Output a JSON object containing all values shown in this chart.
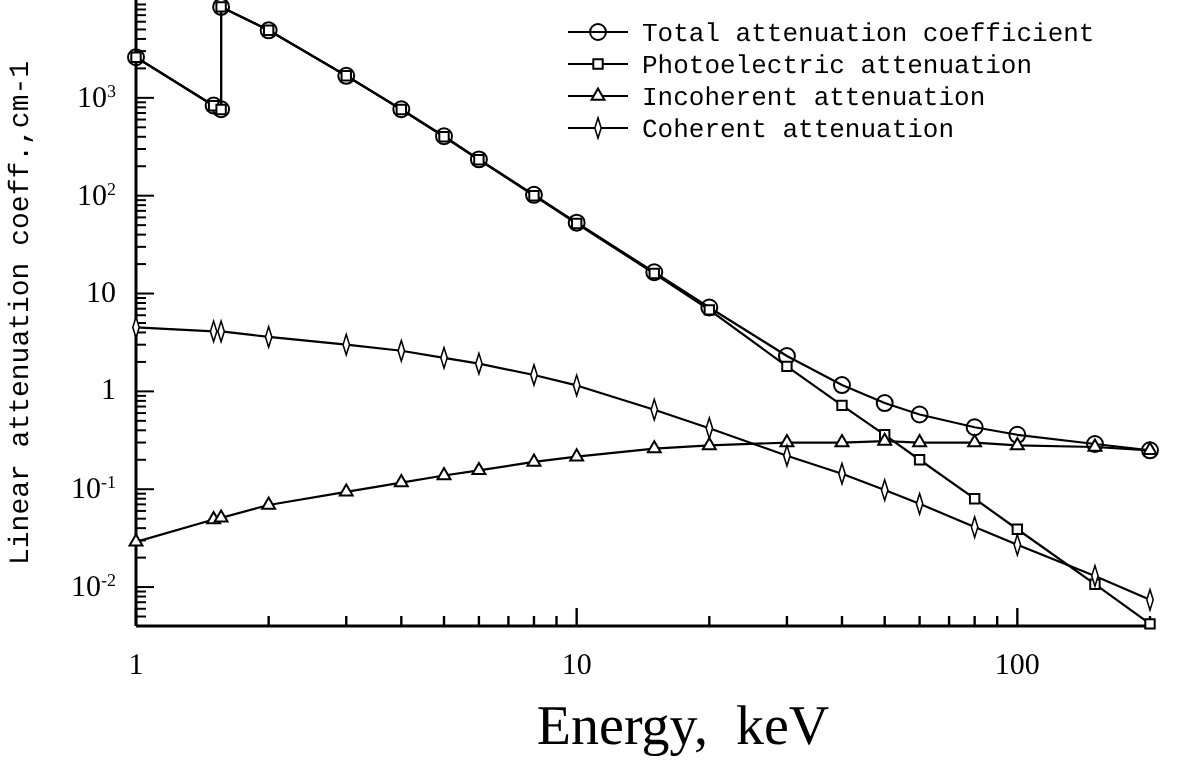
{
  "chart_data": {
    "type": "line",
    "xlabel": "Energy,  keV",
    "ylabel": "Linear attenuation coeff.,cm-1",
    "log": "xy",
    "grid": false,
    "legend": "top right",
    "line_style": "solid",
    "xlim": [
      1,
      200
    ],
    "ylim": [
      0.004,
      10000
    ],
    "xticks": [
      1,
      {
        "value": 2,
        "label": null
      },
      {
        "value": 3,
        "label": null
      },
      {
        "value": 4,
        "label": null
      },
      {
        "value": 5,
        "label": null
      },
      {
        "value": 6,
        "label": null
      },
      {
        "value": 7,
        "label": null
      },
      {
        "value": 8,
        "label": null
      },
      {
        "value": 9,
        "label": null
      },
      10,
      {
        "value": 20,
        "label": null
      },
      {
        "value": 30,
        "label": null
      },
      {
        "value": 40,
        "label": null
      },
      {
        "value": 50,
        "label": null
      },
      {
        "value": 60,
        "label": null
      },
      {
        "value": 70,
        "label": null
      },
      {
        "value": 80,
        "label": null
      },
      {
        "value": 90,
        "label": null
      },
      100,
      {
        "value": 200,
        "label": null
      }
    ],
    "yticks": [
      {
        "value": 0.005,
        "label": null
      },
      {
        "value": 0.006,
        "label": null
      },
      {
        "value": 0.007,
        "label": null
      },
      {
        "value": 0.008,
        "label": null
      },
      {
        "value": 0.009,
        "label": null
      },
      {
        "value": 0.01,
        "label": "10$^{-2}$"
      },
      {
        "value": 0.02,
        "label": null
      },
      {
        "value": 0.03,
        "label": null
      },
      {
        "value": 0.04,
        "label": null
      },
      {
        "value": 0.05,
        "label": null
      },
      {
        "value": 0.06,
        "label": null
      },
      {
        "value": 0.07,
        "label": null
      },
      {
        "value": 0.08,
        "label": null
      },
      {
        "value": 0.09,
        "label": null
      },
      {
        "value": 0.1,
        "label": "10$^{-1}$"
      },
      {
        "value": 0.2,
        "label": null
      },
      {
        "value": 0.3,
        "label": null
      },
      {
        "value": 0.4,
        "label": null
      },
      {
        "value": 0.5,
        "label": null
      },
      {
        "value": 0.6,
        "label": null
      },
      {
        "value": 0.7,
        "label": null
      },
      {
        "value": 0.8,
        "label": null
      },
      {
        "value": 0.9,
        "label": null
      },
      1,
      {
        "value": 2,
        "label": null
      },
      {
        "value": 3,
        "label": null
      },
      {
        "value": 4,
        "label": null
      },
      {
        "value": 5,
        "label": null
      },
      {
        "value": 6,
        "label": null
      },
      {
        "value": 7,
        "label": null
      },
      {
        "value": 8,
        "label": null
      },
      {
        "value": 9,
        "label": null
      },
      10,
      {
        "value": 20,
        "label": null
      },
      {
        "value": 30,
        "label": null
      },
      {
        "value": 40,
        "label": null
      },
      {
        "value": 50,
        "label": null
      },
      {
        "value": 60,
        "label": null
      },
      {
        "value": 70,
        "label": null
      },
      {
        "value": 80,
        "label": null
      },
      {
        "value": 90,
        "label": null
      },
      {
        "value": 100,
        "label": "10$^{2}$"
      },
      {
        "value": 200,
        "label": null
      },
      {
        "value": 300,
        "label": null
      },
      {
        "value": 400,
        "label": null
      },
      {
        "value": 500,
        "label": null
      },
      {
        "value": 600,
        "label": null
      },
      {
        "value": 700,
        "label": null
      },
      {
        "value": 800,
        "label": null
      },
      {
        "value": 900,
        "label": null
      },
      {
        "value": 1000,
        "label": "10$^{3}$"
      },
      {
        "value": 2000,
        "label": null
      },
      {
        "value": 3000,
        "label": null
      },
      {
        "value": 4000,
        "label": null
      },
      {
        "value": 5000,
        "label": null
      },
      {
        "value": 6000,
        "label": null
      },
      {
        "value": 7000,
        "label": null
      },
      {
        "value": 8000,
        "label": null
      },
      {
        "value": 9000,
        "label": null
      }
    ],
    "series": [
      {
        "name": "Total attenuation coefficient",
        "color": "#000000",
        "marker": "circle",
        "x": [
          1,
          1.5,
          1.56,
          1.56,
          2,
          3,
          4,
          5,
          6,
          8,
          10,
          15,
          20,
          30,
          40,
          50,
          60,
          80,
          100,
          150,
          200
        ],
        "values": [
          2600,
          835,
          765,
          8500,
          4900,
          1680,
          765,
          405,
          235,
          102,
          53,
          16.5,
          7.2,
          2.3,
          1.16,
          0.76,
          0.58,
          0.43,
          0.36,
          0.29,
          0.25
        ]
      },
      {
        "name": "Photoelectric attenuation",
        "color": "#000000",
        "marker": "square",
        "x": [
          1,
          1.5,
          1.56,
          1.56,
          2,
          3,
          4,
          5,
          6,
          8,
          10,
          15,
          20,
          30,
          40,
          50,
          60,
          80,
          100,
          150,
          200
        ],
        "values": [
          2600,
          830,
          760,
          8500,
          4900,
          1680,
          760,
          400,
          233,
          100,
          52,
          16,
          6.8,
          1.8,
          0.72,
          0.36,
          0.2,
          0.08,
          0.039,
          0.0107,
          0.0042
        ]
      },
      {
        "name": "Incoherent attenuation",
        "color": "#000000",
        "marker": "triangle",
        "x": [
          1,
          1.5,
          1.56,
          2,
          3,
          4,
          5,
          6,
          8,
          10,
          15,
          20,
          30,
          40,
          50,
          60,
          80,
          100,
          150,
          200
        ],
        "values": [
          0.029,
          0.049,
          0.051,
          0.069,
          0.094,
          0.117,
          0.138,
          0.156,
          0.19,
          0.215,
          0.26,
          0.28,
          0.3,
          0.3,
          0.31,
          0.3,
          0.3,
          0.28,
          0.27,
          0.25
        ]
      },
      {
        "name": "Coherent attenuation",
        "color": "#000000",
        "marker": "diamond",
        "x": [
          1,
          1.5,
          1.56,
          2,
          3,
          4,
          5,
          6,
          8,
          10,
          15,
          20,
          30,
          40,
          50,
          60,
          80,
          100,
          150,
          200
        ],
        "values": [
          4.5,
          4.1,
          4.1,
          3.6,
          3.0,
          2.6,
          2.2,
          1.92,
          1.47,
          1.15,
          0.65,
          0.42,
          0.22,
          0.144,
          0.098,
          0.071,
          0.041,
          0.027,
          0.013,
          0.0074
        ]
      }
    ]
  }
}
